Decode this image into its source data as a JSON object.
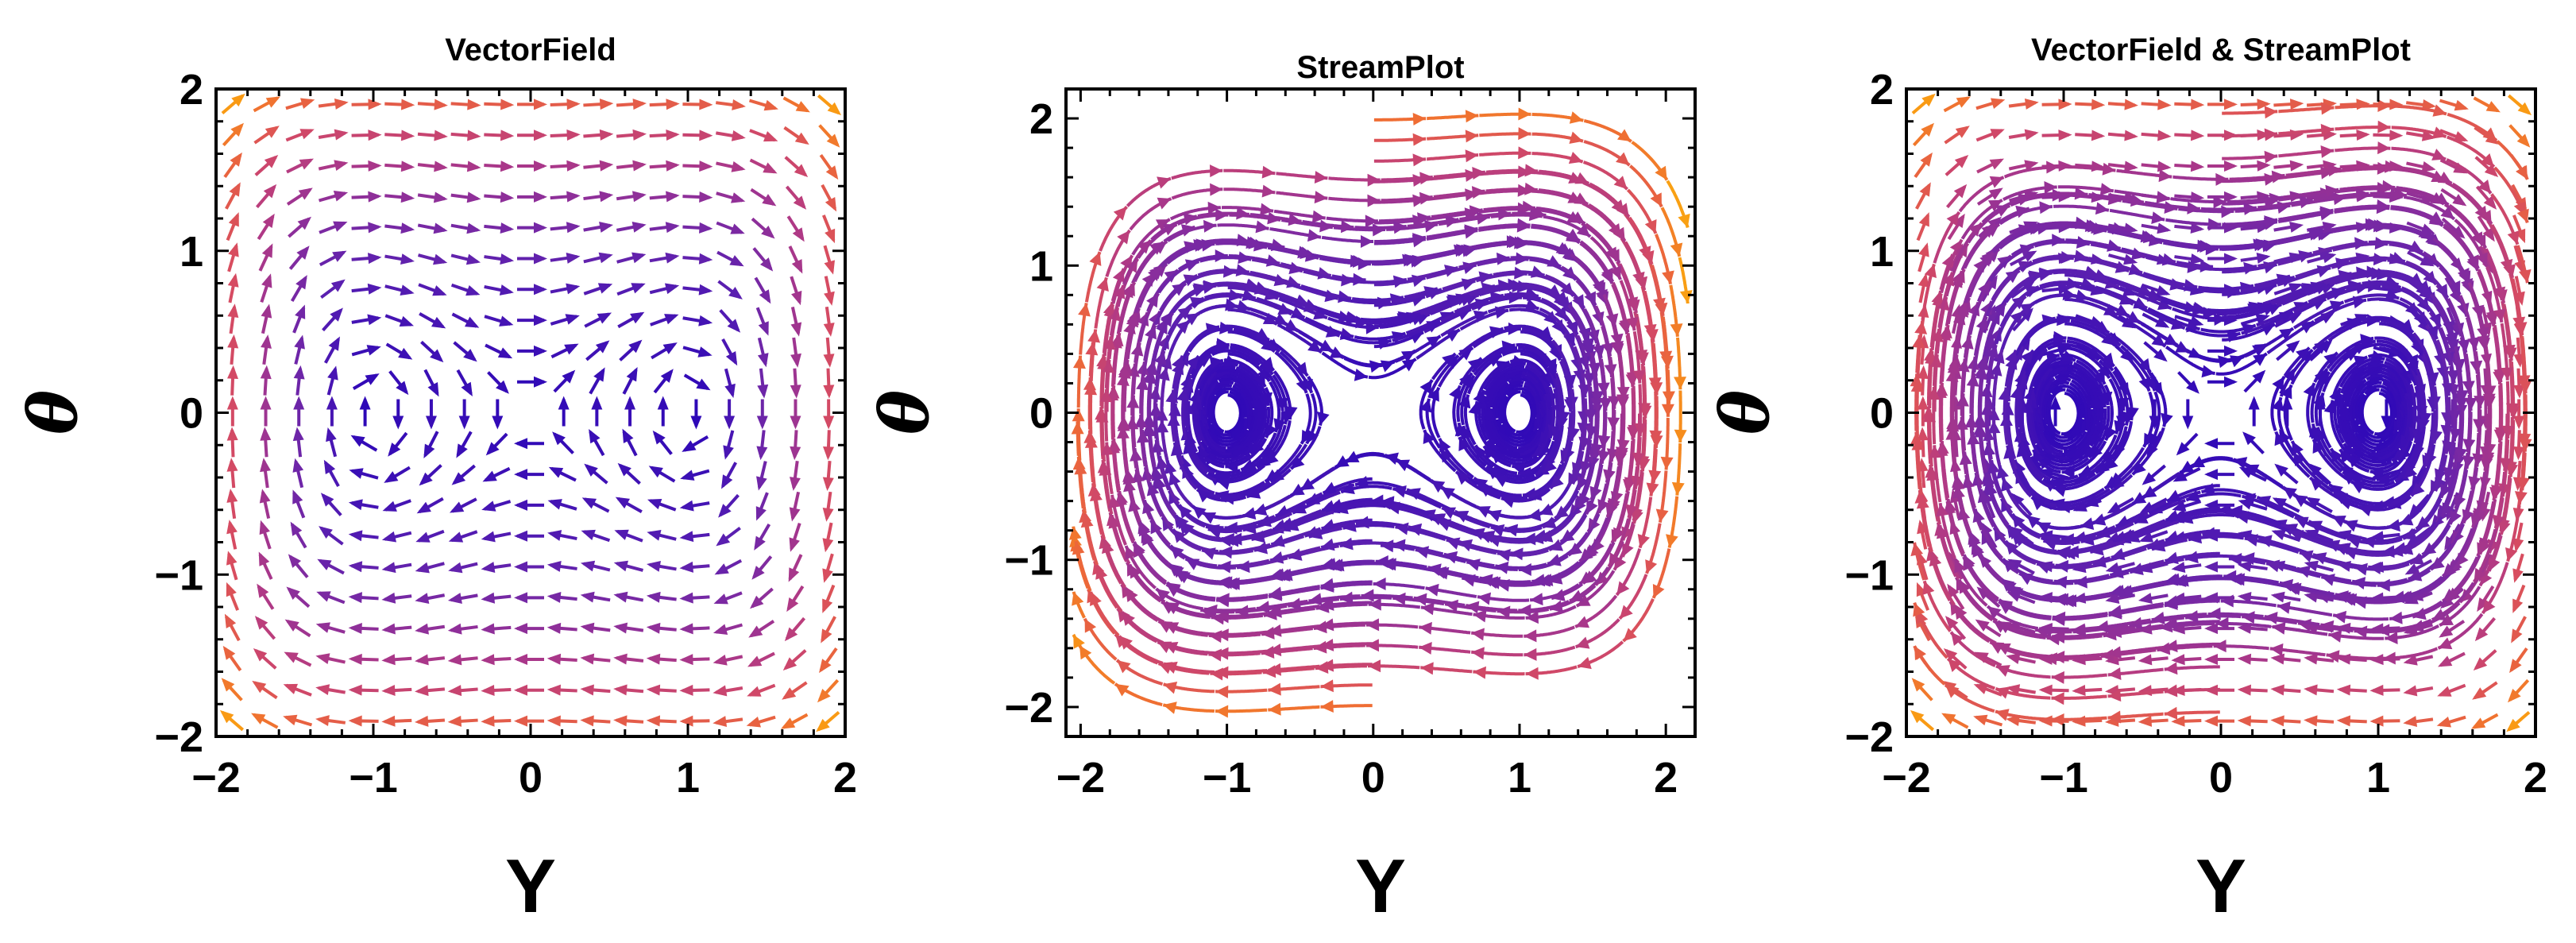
{
  "figure": {
    "background": "#ffffff"
  },
  "colormap": [
    "#2a06b8",
    "#5a1fb0",
    "#8a2e9c",
    "#b23a84",
    "#d64b62",
    "#ee6a36",
    "#f99a14",
    "#fcd10f"
  ],
  "chart_data": [
    {
      "type": "vector_field",
      "title": "VectorField",
      "xlabel": "Y",
      "ylabel": "θ",
      "xlim": [
        -2,
        2
      ],
      "ylim": [
        -2,
        2
      ],
      "xticks": [
        -2,
        -1,
        0,
        1,
        2
      ],
      "yticks": [
        -2,
        -1,
        0,
        1,
        2
      ],
      "tick_labels": [
        "−2",
        "−1",
        "0",
        "1",
        "2"
      ],
      "layers": [
        "vectors"
      ]
    },
    {
      "type": "stream_plot",
      "title": "StreamPlot",
      "xlabel": "Y",
      "ylabel": "θ",
      "xlim": [
        -2.1,
        2.2
      ],
      "ylim": [
        -2.2,
        2.2
      ],
      "xticks": [
        -2,
        -1,
        0,
        1,
        2
      ],
      "yticks": [
        -2,
        -1,
        0,
        1,
        2
      ],
      "tick_labels": [
        "−2",
        "−1",
        "0",
        "1",
        "2"
      ],
      "layers": [
        "streams"
      ]
    },
    {
      "type": "vector_field_and_stream_plot",
      "title": "VectorField & StreamPlot",
      "xlabel": "Y",
      "ylabel": "θ",
      "xlim": [
        -2,
        2
      ],
      "ylim": [
        -2,
        2
      ],
      "xticks": [
        -2,
        -1,
        0,
        1,
        2
      ],
      "yticks": [
        -2,
        -1,
        0,
        1,
        2
      ],
      "tick_labels": [
        "−2",
        "−1",
        "0",
        "1",
        "2"
      ],
      "layers": [
        "vectors",
        "streams"
      ]
    }
  ]
}
